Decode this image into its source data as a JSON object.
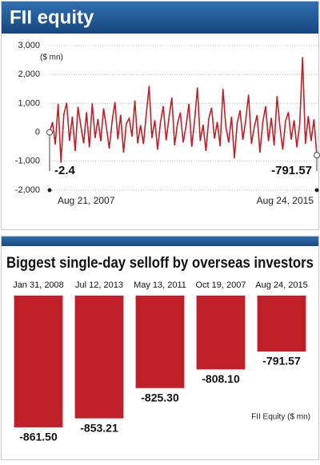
{
  "chart_data": [
    {
      "type": "line",
      "title": "FII equity",
      "y_unit": "($ mn)",
      "color": "#c0202a",
      "grid": true,
      "categories": [
        "Aug 21, 2007",
        null,
        null,
        null,
        null,
        null,
        null,
        null,
        null,
        null,
        null,
        null,
        null,
        null,
        null,
        null,
        null,
        null,
        null,
        null,
        null,
        null,
        null,
        null,
        null,
        null,
        null,
        null,
        null,
        null,
        null,
        null,
        null,
        null,
        null,
        null,
        null,
        null,
        null,
        null,
        null,
        null,
        null,
        null,
        null,
        null,
        null,
        null,
        null,
        null,
        null,
        null,
        null,
        null,
        null,
        null,
        null,
        null,
        null,
        null,
        null,
        null,
        null,
        null,
        null,
        null,
        null,
        null,
        null,
        null,
        null,
        null,
        null,
        null,
        null,
        null,
        null,
        null,
        null,
        null,
        null,
        null,
        null,
        null,
        null,
        null,
        null,
        null,
        null,
        null,
        null,
        null,
        null,
        null,
        "Aug 24, 2015"
      ],
      "values": [
        -2.4,
        350,
        -420,
        980,
        -1050,
        620,
        1020,
        -300,
        540,
        -650,
        880,
        210,
        -380,
        700,
        -520,
        1000,
        -200,
        460,
        -310,
        830,
        150,
        -560,
        390,
        1050,
        -240,
        610,
        -700,
        300,
        480,
        -150,
        1100,
        -380,
        250,
        -400,
        620,
        1600,
        -200,
        420,
        -600,
        350,
        900,
        -280,
        500,
        1200,
        -450,
        300,
        680,
        -350,
        220,
        980,
        -500,
        400,
        1550,
        -300,
        260,
        -650,
        480,
        850,
        -220,
        360,
        -480,
        1500,
        200,
        -350,
        540,
        -900,
        320,
        760,
        -260,
        430,
        1300,
        -400,
        180,
        600,
        -700,
        350,
        900,
        -300,
        500,
        -450,
        1250,
        220,
        -600,
        380,
        700,
        -250,
        420,
        -520,
        300,
        2600,
        -400,
        560,
        -300,
        450,
        -791.57
      ],
      "annotations": [
        "-2.4",
        "-791.57"
      ],
      "ylim": [
        -2000,
        3000
      ],
      "yticks": [
        {
          "value": 3000,
          "label": "3,000"
        },
        {
          "value": 2000,
          "label": "2,000"
        },
        {
          "value": 1000,
          "label": "1,000"
        },
        0,
        {
          "value": -1000,
          "label": "-1,000"
        },
        {
          "value": -2000,
          "label": "-2,000"
        }
      ]
    },
    {
      "type": "bar",
      "title": "Biggest single-day selloff by overseas investors",
      "note": "FII Equity ($ mn)",
      "color": "#c0202a",
      "categories": [
        "Jan 31, 2008",
        "Jul 12, 2013",
        "May 13, 2011",
        "Oct 19, 2007",
        "Aug 24, 2015"
      ],
      "values": [
        -861.5,
        -853.21,
        -825.3,
        -808.1,
        -791.57
      ],
      "value_labels": [
        "-861.50",
        "-853.21",
        "-825.30",
        "-808.10",
        "-791.57"
      ],
      "ylim": [
        -880,
        -740
      ]
    }
  ]
}
